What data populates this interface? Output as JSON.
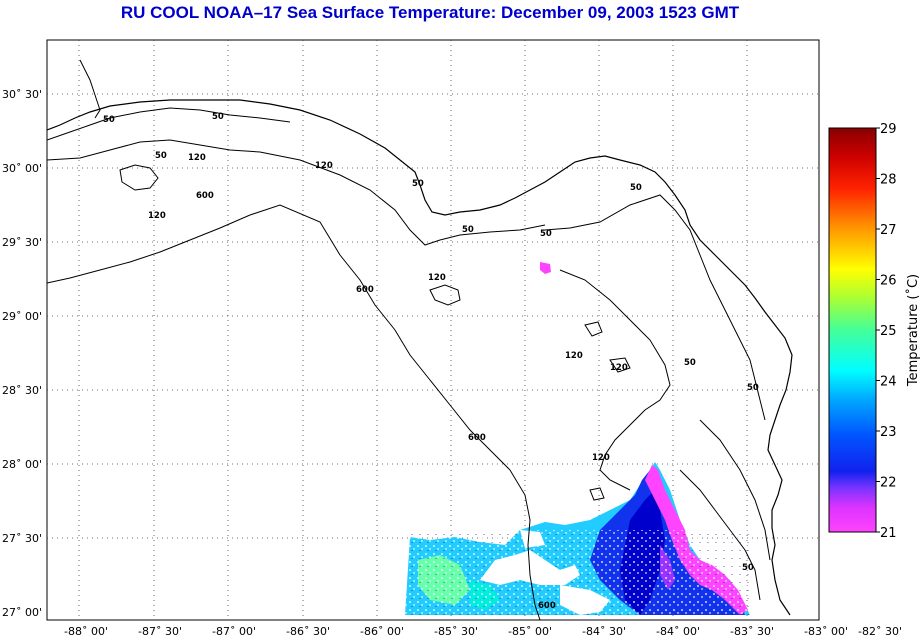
{
  "title": "RU COOL  NOAA–17  Sea Surface Temperature:  December 09, 2003 1523 GMT",
  "map": {
    "lon_ticks": [
      "-88˚ 00'",
      "-87˚ 30'",
      "-87˚ 00'",
      "-86˚ 30'",
      "-86˚ 00'",
      "-85˚ 30'",
      "-85˚ 00'",
      "-84˚ 30'",
      "-84˚ 00'",
      "-83˚ 30'",
      "-83˚ 00'",
      "-82˚ 30'"
    ],
    "lat_ticks": [
      "30˚ 30'",
      "30˚ 00'",
      "29˚ 30'",
      "29˚ 00'",
      "28˚ 30'",
      "28˚ 00'",
      "27˚ 30'",
      "27˚ 00'"
    ],
    "contour_labels": [
      "50",
      "50",
      "50",
      "50",
      "50",
      "50",
      "50",
      "50",
      "50",
      "50",
      "120",
      "120",
      "120",
      "120",
      "120",
      "120",
      "120",
      "600",
      "600",
      "600",
      "600"
    ]
  },
  "colorbar": {
    "title": "Temperature (˚C)",
    "ticks": [
      "29",
      "28",
      "27",
      "26",
      "25",
      "24",
      "23",
      "22",
      "21"
    ],
    "min": 21,
    "max": 29,
    "colors": [
      "#ff44ff",
      "#9933ff",
      "#0000ff",
      "#0088ff",
      "#00ffff",
      "#66ff66",
      "#ffff00",
      "#ff9900",
      "#ff0000",
      "#990000"
    ]
  }
}
